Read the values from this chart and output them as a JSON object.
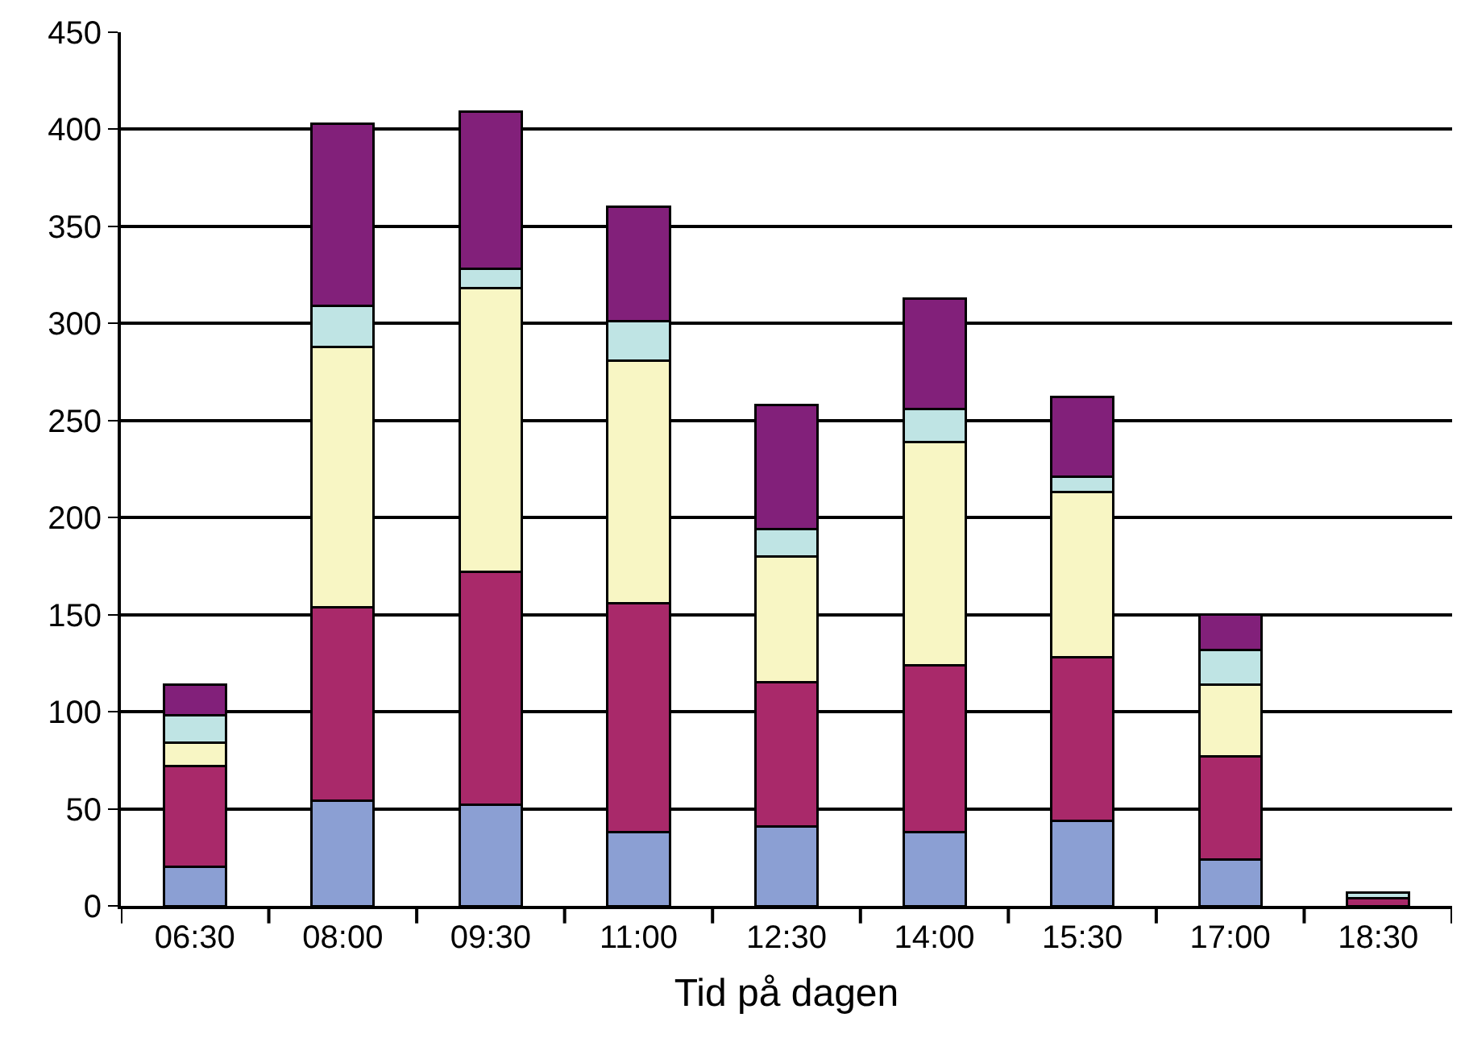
{
  "chart_data": {
    "type": "bar",
    "stacked": true,
    "xlabel": "Tid på dagen",
    "categories": [
      "06:30",
      "08:00",
      "09:30",
      "11:00",
      "12:30",
      "14:00",
      "15:30",
      "17:00",
      "18:30"
    ],
    "series": [
      {
        "color": "#8b9fd3",
        "values": [
          20,
          54,
          52,
          38,
          41,
          38,
          44,
          24,
          0
        ]
      },
      {
        "color": "#a9296a",
        "values": [
          52,
          100,
          120,
          118,
          74,
          86,
          84,
          53,
          4
        ]
      },
      {
        "color": "#f8f6c4",
        "values": [
          12,
          134,
          146,
          125,
          65,
          115,
          85,
          37,
          0
        ]
      },
      {
        "color": "#bfe4e4",
        "values": [
          14,
          21,
          10,
          20,
          14,
          17,
          8,
          18,
          3
        ]
      },
      {
        "color": "#82207a",
        "values": [
          16,
          94,
          81,
          59,
          64,
          57,
          41,
          18,
          0
        ]
      }
    ],
    "ylim": [
      0,
      450
    ],
    "yticks": [
      0,
      50,
      100,
      150,
      200,
      250,
      300,
      350,
      400,
      450
    ],
    "grid": "y",
    "legend": false
  }
}
